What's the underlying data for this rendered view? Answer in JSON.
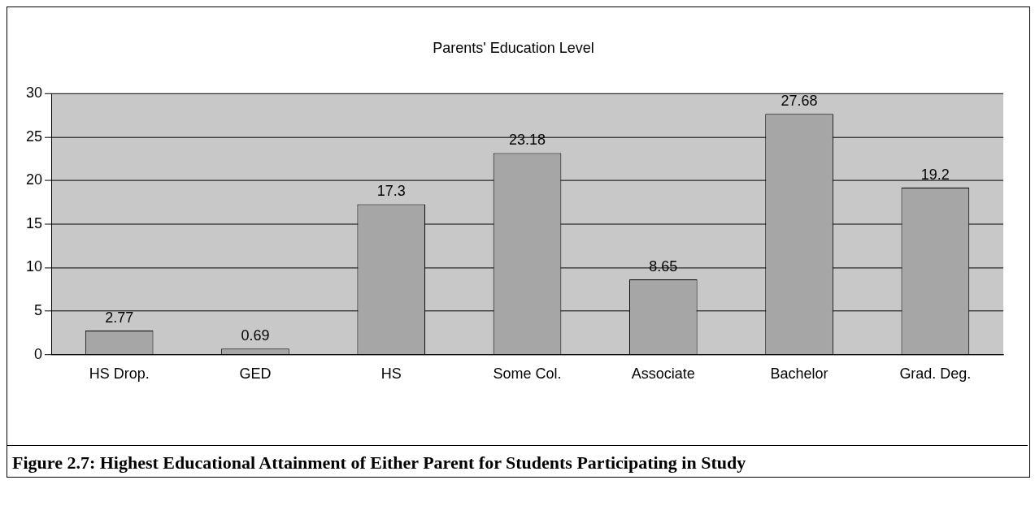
{
  "chart_data": {
    "type": "bar",
    "title": "Parents' Education Level",
    "categories": [
      "HS Drop.",
      "GED",
      "HS",
      "Some Col.",
      "Associate",
      "Bachelor",
      "Grad. Deg."
    ],
    "values": [
      2.77,
      0.69,
      17.3,
      23.18,
      8.65,
      27.68,
      19.2
    ],
    "color": "#a6a6a6",
    "ylim": [
      0,
      30
    ],
    "yticks": [
      0,
      5,
      10,
      15,
      20,
      25,
      30
    ],
    "grid": "y",
    "data_labels": true,
    "legend": false,
    "annotations": [
      "Figure 2.7: Highest Educational Attainment of Either Parent for Students Participating in Study"
    ]
  }
}
